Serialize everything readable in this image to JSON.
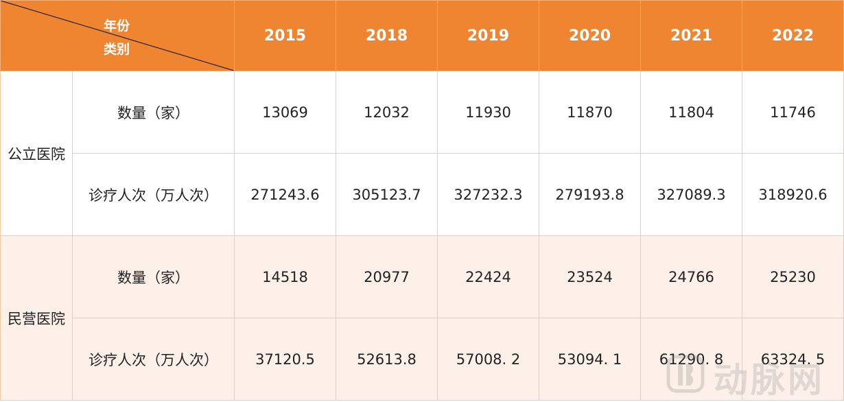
{
  "header": {
    "corner_top": "年份",
    "corner_bottom": "类别",
    "years": [
      "2015",
      "2018",
      "2019",
      "2020",
      "2021",
      "2022"
    ]
  },
  "groups": [
    {
      "name": "公立医院",
      "rows": [
        {
          "label": "数量（家）",
          "values": [
            "13069",
            "12032",
            "11930",
            "11870",
            "11804",
            "11746"
          ]
        },
        {
          "label": "诊疗人次（万人次）",
          "values": [
            "271243.6",
            "305123.7",
            "327232.3",
            "279193.8",
            "327089.3",
            "318920.6"
          ]
        }
      ]
    },
    {
      "name": "民营医院",
      "rows": [
        {
          "label": "数量（家）",
          "values": [
            "14518",
            "20977",
            "22424",
            "23524",
            "24766",
            "25230"
          ]
        },
        {
          "label": "诊疗人次（万人次）",
          "values": [
            "37120.5",
            "52613.8",
            "57008. 2",
            "53094. 1",
            "61290. 8",
            "63324. 5"
          ]
        }
      ]
    }
  ],
  "watermark": {
    "text": "动脉网",
    "icon": "arteriy-logo-icon"
  },
  "colors": {
    "header_bg": "#ef8431",
    "header_text": "#ffffff",
    "alt_row_bg": "#fdf0e8",
    "border": "#f3c9a6"
  }
}
